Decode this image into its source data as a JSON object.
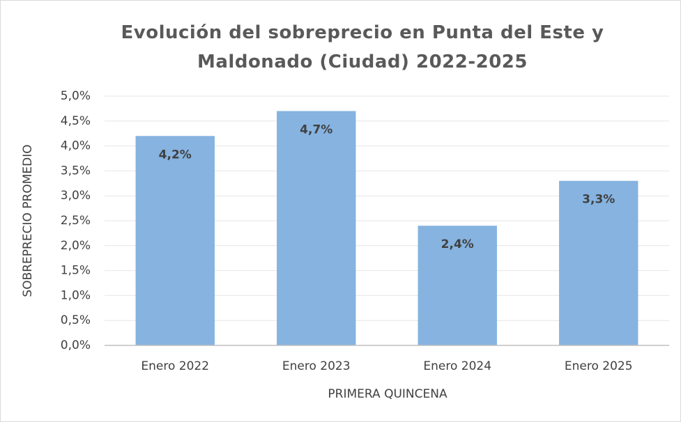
{
  "chart_data": {
    "type": "bar",
    "title": "Evolución del sobreprecio en Punta del Este y Maldonado (Ciudad) 2022-2025",
    "x_label": "PRIMERA QUINCENA",
    "y_label": "SOBREPRECIO PROMEDIO",
    "categories": [
      "Enero 2022",
      "Enero 2023",
      "Enero 2024",
      "Enero 2025"
    ],
    "values": [
      4.2,
      4.7,
      2.4,
      3.3
    ],
    "value_labels": [
      "4,2%",
      "4,7%",
      "2,4%",
      "3,3%"
    ],
    "color": "#86b3e0",
    "ylim": [
      0,
      5
    ],
    "yticks": [
      {
        "value": 0,
        "label": "0,0%"
      },
      {
        "value": 0.5,
        "label": "0,5%"
      },
      {
        "value": 1,
        "label": "1,0%"
      },
      {
        "value": 1.5,
        "label": "1,5%"
      },
      {
        "value": 2,
        "label": "2,0%"
      },
      {
        "value": 2.5,
        "label": "2,5%"
      },
      {
        "value": 3,
        "label": "3,0%"
      },
      {
        "value": 3.5,
        "label": "3,5%"
      },
      {
        "value": 4,
        "label": "4,0%"
      },
      {
        "value": 4.5,
        "label": "4,5%"
      },
      {
        "value": 5,
        "label": "5,0%"
      }
    ],
    "grid": true
  }
}
